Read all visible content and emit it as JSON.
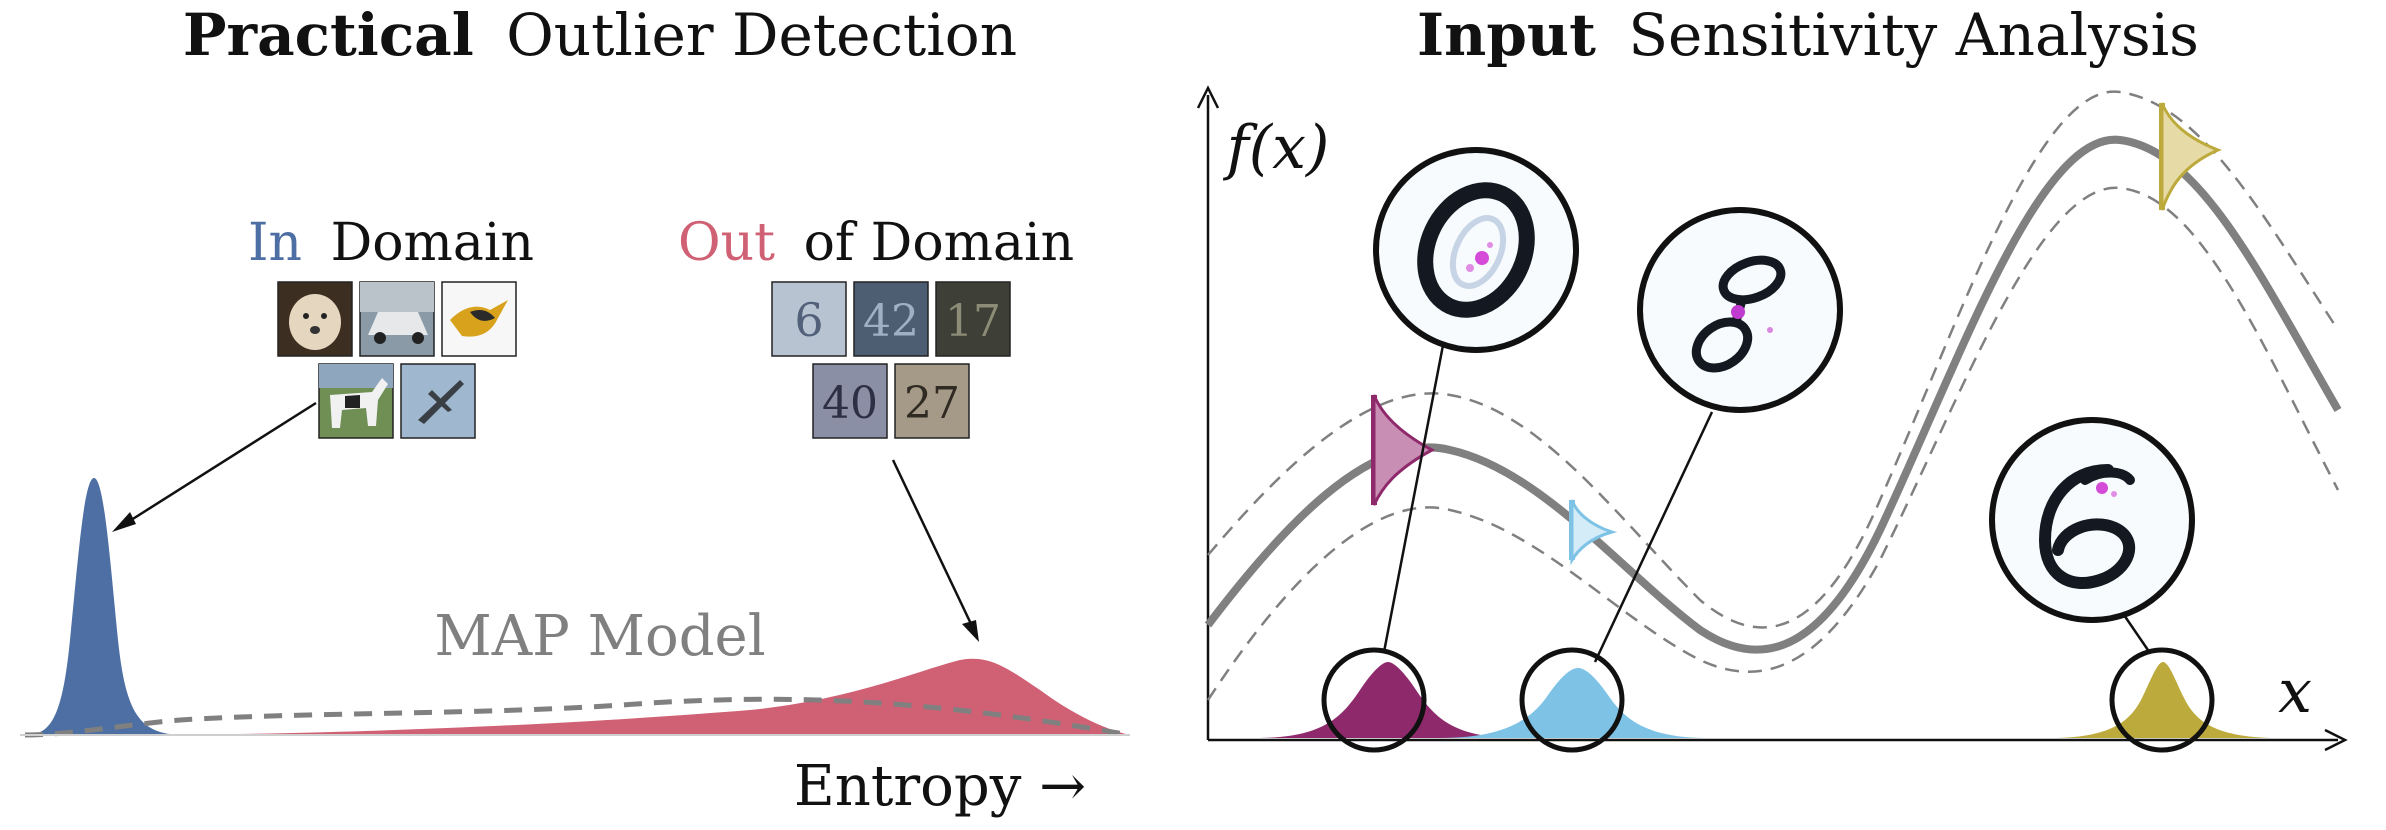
{
  "left_panel": {
    "title_bold": "Practical",
    "title_rest": "Outlier Detection",
    "in_label": "In",
    "in_rest": "Domain",
    "out_label": "Out",
    "out_rest": "of Domain",
    "model_label": "MAP Model",
    "axis_label": "Entropy →",
    "in_images": [
      "dog",
      "car",
      "bird",
      "horse",
      "airplane"
    ],
    "out_images": [
      "6",
      "42",
      "17",
      "40",
      "27"
    ]
  },
  "right_panel": {
    "title_bold": "Input",
    "title_rest": "Sensitivity Analysis",
    "y_label": "f(x)",
    "x_label": "x",
    "digits": [
      "0",
      "8",
      "6"
    ]
  },
  "colors": {
    "in_domain": "#4e6fa3",
    "out_domain": "#d06073",
    "curve": "#808080",
    "purple": "#8e2a6c",
    "light_blue": "#7ec3e6",
    "gold": "#bdaa3c",
    "label_gray": "#808080"
  }
}
